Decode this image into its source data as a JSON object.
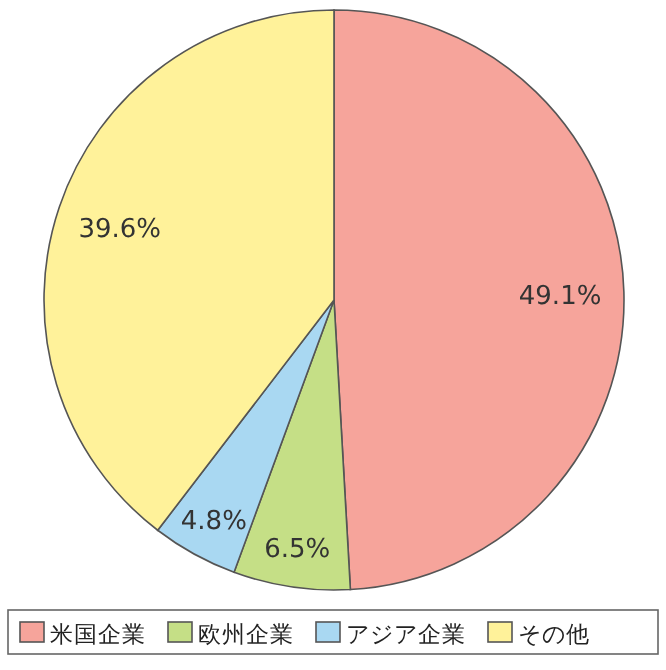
{
  "chart_data": {
    "type": "pie",
    "categories": [
      "米国企業",
      "欧州企業",
      "アジア企業",
      "その他"
    ],
    "values": [
      49.1,
      6.5,
      4.8,
      39.6
    ],
    "colors": [
      "#f6a49b",
      "#c5df86",
      "#a9d8f2",
      "#fff29a"
    ],
    "value_labels": [
      "49.1%",
      "6.5%",
      "4.8%",
      "39.6%"
    ],
    "legend": "bottom"
  }
}
